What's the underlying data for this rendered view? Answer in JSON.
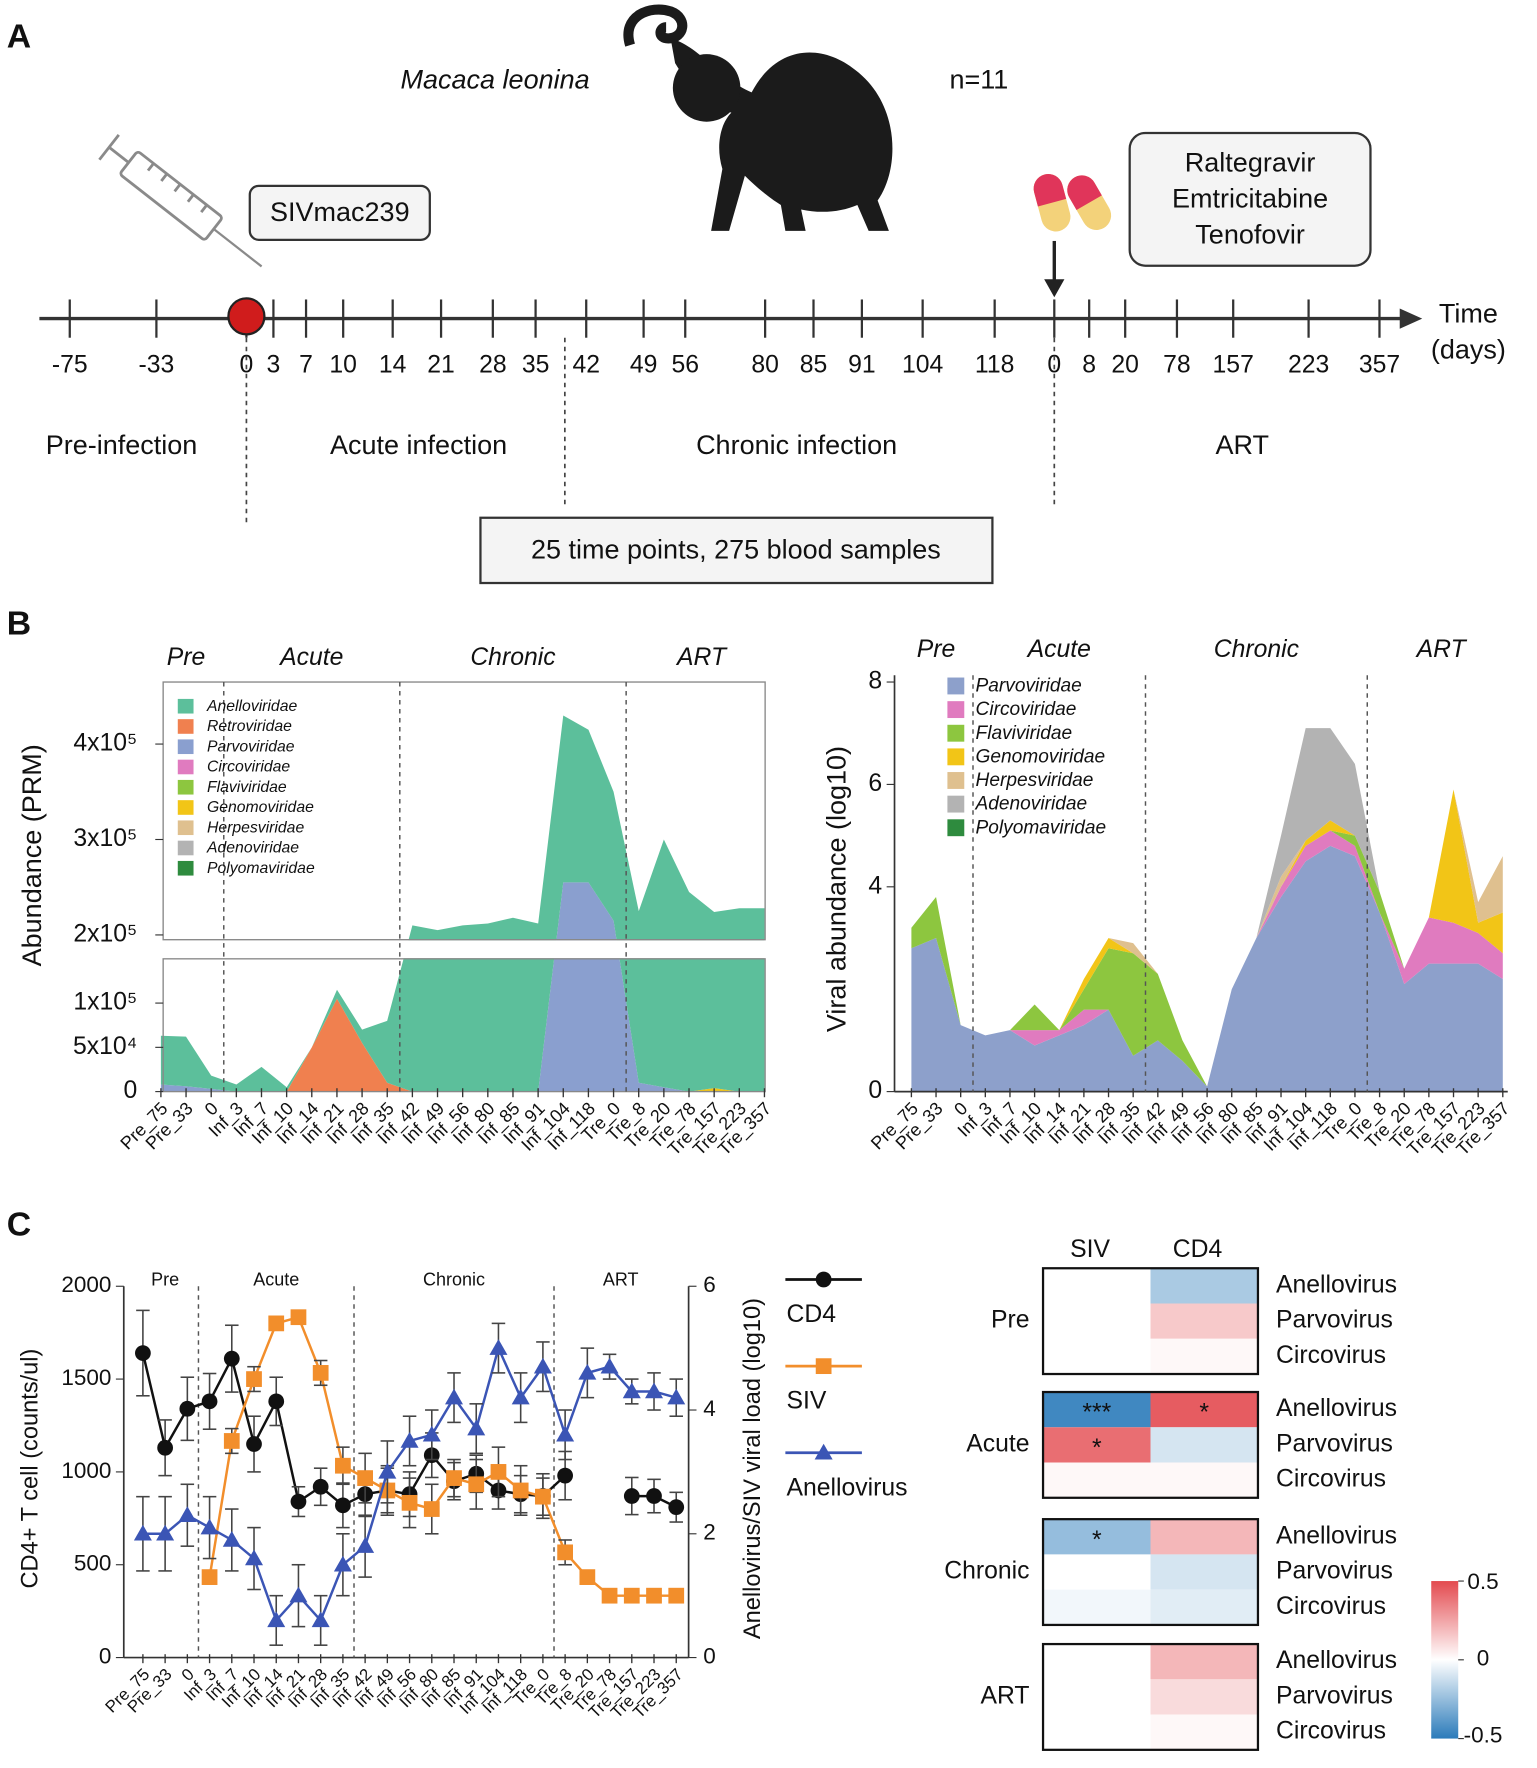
{
  "panel_labels": [
    "A",
    "B",
    "C"
  ],
  "timeline": {
    "species": "Macaca leonina",
    "sample_size": "n=11",
    "infection": "SIVmac239",
    "treatment": [
      "Raltegravir",
      "Emtricitabine",
      "Tenofovir"
    ],
    "ticks": [
      "-75",
      "-33",
      "0",
      "3",
      "7",
      "10",
      "14",
      "21",
      "28",
      "35",
      "42",
      "49",
      "56",
      "80",
      "85",
      "91",
      "104",
      "118",
      "0",
      "8",
      "20",
      "78",
      "157",
      "223",
      "357"
    ],
    "axis_label": [
      "Time",
      "(days)"
    ],
    "phases": [
      "Pre-infection",
      "Acute infection",
      "Chronic infection",
      "ART"
    ],
    "summary": "25 time points, 275 blood samples"
  },
  "chart_data": [
    {
      "type": "stacked_area",
      "phases": [
        "Pre",
        "Acute",
        "Chronic",
        "ART"
      ],
      "ylabel": "Abundance (PRM)",
      "categories": [
        "Pre_75",
        "Pre_33",
        "0",
        "Inf_3",
        "Inf_7",
        "Inf_10",
        "Inf_14",
        "Inf_21",
        "Inf_28",
        "Inf_35",
        "Inf_42",
        "Inf_49",
        "Inf_56",
        "Inf_80",
        "Inf_85",
        "Inf_91",
        "Inf_104",
        "Inf_118",
        "Tre_0",
        "Tre_8",
        "Tre_20",
        "Tre_78",
        "Tre_157",
        "Tre_223",
        "Tre_357"
      ],
      "ylim": [
        0,
        465000
      ],
      "ybreak": [
        150000,
        195000
      ],
      "yticks": [
        0,
        {
          "value": 50000,
          "label": "5x10⁴"
        },
        {
          "value": 100000,
          "label": "1x10⁵"
        },
        {
          "value": 200000,
          "label": "2x10⁵"
        },
        {
          "value": 300000,
          "label": "3x10⁵"
        },
        {
          "value": 400000,
          "label": "4x10⁵"
        }
      ],
      "series": [
        {
          "name": "Anelloviridae",
          "color": "#5cbf9b",
          "values": [
            55000,
            56000,
            15000,
            8000,
            28000,
            5000,
            0,
            10000,
            15000,
            70000,
            210000,
            205000,
            210000,
            212000,
            218000,
            212000,
            175000,
            160000,
            135000,
            215000,
            295000,
            245000,
            220000,
            228000,
            228000
          ]
        },
        {
          "name": "Retroviridae",
          "color": "#f0804f",
          "values": [
            0,
            0,
            0,
            0,
            0,
            0,
            50000,
            105000,
            55000,
            10000,
            0,
            0,
            0,
            0,
            0,
            0,
            0,
            0,
            0,
            0,
            0,
            0,
            0,
            0,
            0
          ]
        },
        {
          "name": "Parvoviridae",
          "color": "#8a9fcf",
          "values": [
            8000,
            6000,
            3000,
            0,
            0,
            0,
            0,
            0,
            0,
            0,
            0,
            0,
            0,
            0,
            0,
            0,
            255000,
            255000,
            215000,
            10000,
            5000,
            0,
            0,
            0,
            0
          ]
        },
        {
          "name": "Circoviridae",
          "color": "#e07bbf",
          "values": [
            0,
            0,
            0,
            0,
            0,
            0,
            0,
            0,
            0,
            0,
            0,
            0,
            0,
            0,
            0,
            0,
            0,
            0,
            0,
            0,
            0,
            0,
            0,
            0,
            0
          ]
        },
        {
          "name": "Flaviviridae",
          "color": "#8dc63f",
          "values": [
            0,
            0,
            0,
            0,
            0,
            0,
            0,
            0,
            0,
            0,
            0,
            0,
            0,
            0,
            0,
            0,
            0,
            0,
            0,
            0,
            0,
            0,
            0,
            0,
            0
          ]
        },
        {
          "name": "Genomoviridae",
          "color": "#f2c517",
          "values": [
            0,
            0,
            0,
            0,
            0,
            0,
            0,
            0,
            0,
            0,
            0,
            0,
            0,
            0,
            0,
            0,
            0,
            0,
            0,
            0,
            0,
            0,
            4000,
            0,
            0
          ]
        },
        {
          "name": "Herpesviridae",
          "color": "#dfc08f",
          "values": [
            0,
            0,
            0,
            0,
            0,
            0,
            0,
            0,
            0,
            0,
            0,
            0,
            0,
            0,
            0,
            0,
            0,
            0,
            0,
            0,
            0,
            0,
            0,
            0,
            0
          ]
        },
        {
          "name": "Adenoviridae",
          "color": "#b3b3b3",
          "values": [
            0,
            0,
            0,
            0,
            0,
            0,
            0,
            0,
            0,
            0,
            0,
            0,
            0,
            0,
            0,
            0,
            0,
            0,
            0,
            0,
            0,
            0,
            0,
            0,
            0
          ]
        },
        {
          "name": "Polyomaviridae",
          "color": "#2e8b3e",
          "values": [
            0,
            0,
            0,
            0,
            0,
            0,
            0,
            0,
            0,
            0,
            0,
            0,
            0,
            0,
            0,
            0,
            0,
            0,
            0,
            0,
            0,
            0,
            0,
            0,
            0
          ]
        }
      ]
    },
    {
      "type": "stacked_area",
      "phases": [
        "Pre",
        "Acute",
        "Chronic",
        "ART"
      ],
      "ylabel": "Viral abundance (log10)",
      "categories": [
        "Pre_75",
        "Pre_33",
        "0",
        "Inf_3",
        "Inf_7",
        "Inf_10",
        "Inf_14",
        "Inf_21",
        "Inf_28",
        "Inf_35",
        "Inf_42",
        "Inf_49",
        "Inf_56",
        "Inf_80",
        "Inf_85",
        "Inf_91",
        "Inf_104",
        "Inf_118",
        "Tre_0",
        "Tre_8",
        "Tre_20",
        "Tre_78",
        "Tre_157",
        "Tre_223",
        "Tre_357"
      ],
      "ylim": [
        0,
        8
      ],
      "yticks": [
        0,
        4,
        6,
        8
      ],
      "series": [
        {
          "name": "Parvoviridae",
          "color": "#8da0cb",
          "values": [
            2.8,
            3.0,
            1.3,
            1.1,
            1.2,
            0.9,
            1.1,
            1.3,
            1.6,
            0.7,
            1.0,
            0.6,
            0.1,
            2.0,
            3.0,
            3.8,
            4.5,
            4.8,
            4.6,
            3.5,
            2.1,
            2.5,
            2.5,
            2.5,
            2.2
          ]
        },
        {
          "name": "Circoviridae",
          "color": "#e07bbf",
          "values": [
            0,
            0,
            0,
            0,
            0,
            0.3,
            0.1,
            0.3,
            0,
            0,
            0,
            0,
            0,
            0,
            0,
            0.2,
            0.3,
            0.3,
            0.2,
            0,
            0.3,
            0.9,
            0.8,
            0.6,
            0.5
          ]
        },
        {
          "name": "Flaviviridae",
          "color": "#8dc63f",
          "values": [
            0.4,
            0.8,
            0,
            0,
            0,
            0.5,
            0,
            0.4,
            1.2,
            2.0,
            1.3,
            0.4,
            0,
            0,
            0,
            0,
            0,
            0,
            0.2,
            0.4,
            0,
            0,
            0,
            0,
            0
          ]
        },
        {
          "name": "Genomoviridae",
          "color": "#f2c517",
          "values": [
            0,
            0,
            0,
            0,
            0,
            0,
            0,
            0.2,
            0.2,
            0,
            0,
            0,
            0,
            0,
            0,
            0,
            0.1,
            0.2,
            0,
            0,
            0,
            0,
            2.6,
            0.2,
            0.8
          ]
        },
        {
          "name": "Herpesviridae",
          "color": "#dfc08f",
          "values": [
            0,
            0,
            0,
            0,
            0,
            0,
            0,
            0,
            0,
            0.2,
            0,
            0,
            0,
            0,
            0,
            0.2,
            0,
            0,
            0,
            0,
            0,
            0,
            0,
            0.4,
            1.1
          ]
        },
        {
          "name": "Adenoviridae",
          "color": "#b3b3b3",
          "values": [
            0,
            0,
            0,
            0,
            0,
            0,
            0,
            0,
            0,
            0,
            0,
            0,
            0,
            0,
            0,
            0.8,
            2.2,
            1.8,
            1.4,
            0,
            0,
            0,
            0,
            0,
            0
          ]
        },
        {
          "name": "Polyomaviridae",
          "color": "#2e8b3e",
          "values": [
            0,
            0,
            0,
            0,
            0,
            0,
            0,
            0,
            0,
            0,
            0,
            0,
            0,
            0,
            0,
            0,
            0,
            0,
            0,
            0,
            0,
            0,
            0,
            0,
            0
          ]
        }
      ]
    },
    {
      "type": "line",
      "phases": [
        "Pre",
        "Acute",
        "Chronic",
        "ART"
      ],
      "ylabel": "CD4+ T cell (counts/ul)",
      "y2label": "Anellovirus/SIV viral load (log10)",
      "categories": [
        "Pre_75",
        "Pre_33",
        "0",
        "Inf_3",
        "Inf_7",
        "Inf_10",
        "Inf_14",
        "Inf_21",
        "Inf_28",
        "Inf_35",
        "Inf_42",
        "Inf_49",
        "Inf_56",
        "Inf_80",
        "Inf_85",
        "Inf_91",
        "Inf_104",
        "Inf_118",
        "Tre_0",
        "Tre_8",
        "Tre_20",
        "Tre_78",
        "Tre_157",
        "Tre_223",
        "Tre_357"
      ],
      "ylim": [
        0,
        2000
      ],
      "yticks": [
        0,
        500,
        1000,
        1500,
        2000
      ],
      "y2lim": [
        0,
        6
      ],
      "y2ticks": [
        0,
        2,
        4,
        6
      ],
      "series": [
        {
          "name": "CD4",
          "color": "#111111",
          "marker": "circle",
          "values": [
            1640,
            1130,
            1340,
            1380,
            1610,
            1150,
            1380,
            840,
            920,
            820,
            880,
            900,
            880,
            1090,
            950,
            990,
            900,
            880,
            870,
            980,
            null,
            null,
            870,
            870,
            810
          ],
          "errors": [
            230,
            150,
            170,
            150,
            180,
            150,
            130,
            80,
            100,
            120,
            120,
            120,
            120,
            120,
            100,
            100,
            100,
            100,
            120,
            130,
            null,
            null,
            100,
            90,
            80
          ]
        },
        {
          "name": "SIV",
          "color": "#f28e2b",
          "marker": "square",
          "axis": "y2",
          "values": [
            null,
            null,
            null,
            1.3,
            3.5,
            4.5,
            5.4,
            5.5,
            4.6,
            3.1,
            2.9,
            2.7,
            2.5,
            2.4,
            2.9,
            2.8,
            3.0,
            2.7,
            2.6,
            1.7,
            1.3,
            1.0,
            1.0,
            1.0,
            1.0
          ],
          "errors": [
            null,
            null,
            null,
            0.1,
            0.2,
            0.2,
            0.1,
            0.1,
            0.2,
            0.3,
            0.4,
            0.4,
            0.4,
            0.4,
            0.3,
            0.4,
            0.4,
            0.4,
            0.3,
            0.2,
            0.1,
            0.1,
            0.1,
            0.1,
            0.1
          ]
        },
        {
          "name": "Anellovirus",
          "color": "#3b55b5",
          "marker": "triangle",
          "axis": "y2",
          "values": [
            2.0,
            2.0,
            2.3,
            2.1,
            1.9,
            1.6,
            0.6,
            1.0,
            0.6,
            1.5,
            1.8,
            3.0,
            3.5,
            3.6,
            4.2,
            3.7,
            5.0,
            4.2,
            4.7,
            3.6,
            4.6,
            4.7,
            4.3,
            4.3,
            4.2
          ],
          "errors": [
            0.6,
            0.6,
            0.5,
            0.5,
            0.5,
            0.5,
            0.4,
            0.5,
            0.4,
            0.5,
            0.5,
            0.5,
            0.4,
            0.4,
            0.4,
            0.4,
            0.4,
            0.4,
            0.4,
            0.4,
            0.4,
            0.2,
            0.2,
            0.3,
            0.3
          ]
        }
      ]
    },
    {
      "type": "heatmap",
      "columns": [
        "SIV",
        "CD4"
      ],
      "groups": [
        "Pre",
        "Acute",
        "Chronic",
        "ART"
      ],
      "rows": [
        "Anellovirus",
        "Parvovirus",
        "Circovirus"
      ],
      "values": [
        [
          [
            null,
            -0.2
          ],
          [
            null,
            0.15
          ],
          [
            null,
            0.02
          ]
        ],
        [
          [
            -0.45,
            0.45
          ],
          [
            0.4,
            -0.1
          ],
          [
            0.02,
            0.02
          ]
        ],
        [
          [
            -0.25,
            0.2
          ],
          [
            0,
            -0.1
          ],
          [
            -0.03,
            -0.07
          ]
        ],
        [
          [
            null,
            0.2
          ],
          [
            null,
            0.1
          ],
          [
            null,
            0.02
          ]
        ]
      ],
      "annotations": [
        [
          [
            null,
            null
          ],
          [
            null,
            null
          ],
          [
            null,
            null
          ]
        ],
        [
          [
            "***",
            "*"
          ],
          [
            "*",
            null
          ],
          [
            null,
            null
          ]
        ],
        [
          [
            "*",
            null
          ],
          [
            null,
            null
          ],
          [
            null,
            null
          ]
        ],
        [
          [
            null,
            null
          ],
          [
            null,
            null
          ],
          [
            null,
            null
          ]
        ]
      ],
      "zlim": [
        -0.5,
        0.5
      ],
      "colorbar_ticks": [
        0.5,
        0,
        -0.5
      ],
      "colors": [
        "#2b7bba",
        "#ffffff",
        "#e34a4f"
      ]
    }
  ]
}
